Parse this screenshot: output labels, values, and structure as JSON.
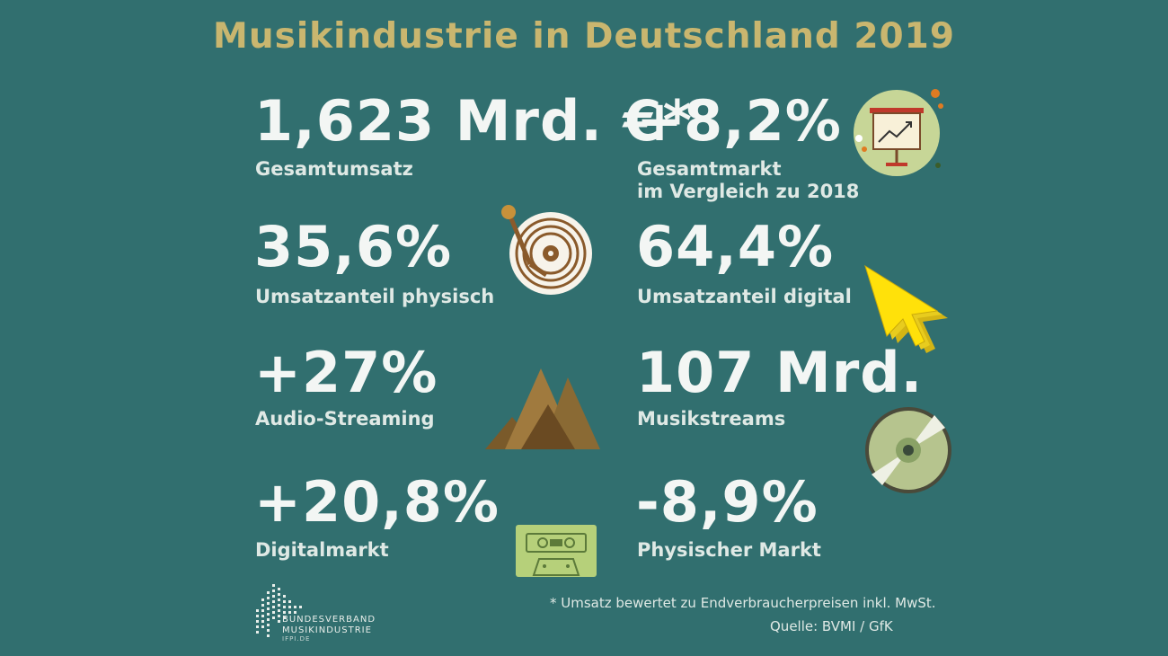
{
  "title": "Musikindustrie in Deutschland 2019",
  "stats": [
    {
      "value": "1,623 Mrd. €*",
      "label": "Gesamtumsatz"
    },
    {
      "value": "+8,2%",
      "label_line1": "Gesamtmarkt",
      "label_line2": "im Vergleich zu 2018"
    },
    {
      "value": "35,6%",
      "label": "Umsatzanteil physisch"
    },
    {
      "value": "64,4%",
      "label": "Umsatzanteil digital"
    },
    {
      "value": "+27%",
      "label": "Audio-Streaming"
    },
    {
      "value": "107 Mrd.",
      "label": "Musikstreams"
    },
    {
      "value": "+20,8%",
      "label": "Digitalmarkt"
    },
    {
      "value": "-8,9%",
      "label": "Physischer Markt"
    }
  ],
  "footnote": "* Umsatz bewertet zu Endverbraucherpreisen inkl. MwSt.",
  "source": "Quelle: BVMI / GfK",
  "logo": {
    "line1": "BUNDESVERBAND",
    "line2": "MUSIKINDUSTRIE",
    "line3": "IFPI.DE"
  },
  "icons": [
    "presentation-chart-icon",
    "turntable-icon",
    "cursor-arrow-icon",
    "mountains-icon",
    "cd-icon",
    "cassette-icon"
  ],
  "colors": {
    "background": "#316f6f",
    "title": "#c9b66f",
    "text": "#f3f6f4"
  }
}
